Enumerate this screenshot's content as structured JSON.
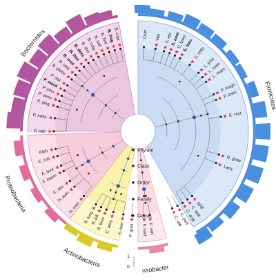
{
  "phyla": [
    {
      "key": "bacteroidetes",
      "name": "Bacteroides",
      "start": 270,
      "end": 350,
      "color": "#b2569f",
      "fill": "#f3d9ec",
      "inner": "#e4b6d6"
    },
    {
      "key": "firmicutes",
      "name": "Firmicutes",
      "start": 0,
      "end": 150,
      "color": "#4a8ee0",
      "fill": "#dbe8f8",
      "inner": "#b9d2f1"
    },
    {
      "key": "fusobacteria",
      "name": "Fusobacteria",
      "start": 165,
      "end": 180,
      "color": "#e58aa6",
      "fill": "#fce9ee",
      "inner": "#f7d3dd"
    },
    {
      "key": "actinobacteria",
      "name": "Actinobacteria",
      "start": 190,
      "end": 218,
      "color": "#dbc826",
      "fill": "#fdf8cc",
      "inner": "#f4ec94"
    },
    {
      "key": "proteobacteria",
      "name": "Proteobacteria",
      "start": 218,
      "end": 268,
      "color": "#e36b9b",
      "fill": "#fbe1ea",
      "inner": "#f3bccf"
    }
  ],
  "levels": [
    "Phylum",
    "Class",
    "Order",
    "Family",
    "Genus"
  ],
  "scale": {
    "min": "0",
    "max": "1"
  },
  "leaves": [
    {
      "label": "B. copr",
      "angle": 348,
      "bold": false,
      "star": true
    },
    {
      "label": "B. frag",
      "angle": 344,
      "bold": true,
      "star": true
    },
    {
      "label": "B. fine",
      "angle": 340,
      "bold": false,
      "star": true
    },
    {
      "label": "B. unif",
      "angle": 336,
      "bold": false,
      "star": true
    },
    {
      "label": "B. vulg",
      "angle": 332,
      "bold": false,
      "star": true
    },
    {
      "label": "B. ster",
      "angle": 328,
      "bold": false,
      "star": true
    },
    {
      "label": "B. dore",
      "angle": 324,
      "bold": true,
      "star": true
    },
    {
      "label": "B. thet",
      "angle": 320,
      "bold": true,
      "star": true
    },
    {
      "label": "B. ovat",
      "angle": 316,
      "bold": true,
      "star": true
    },
    {
      "label": "B. sele",
      "angle": 312,
      "bold": false,
      "star": true
    },
    {
      "label": "B. plebe",
      "angle": 308,
      "bold": false,
      "star": true
    },
    {
      "label": "P. dist",
      "angle": 303,
      "bold": false,
      "star": true
    },
    {
      "label": "P. merd",
      "angle": 299,
      "bold": true,
      "star": true
    },
    {
      "label": "P. john",
      "angle": 295,
      "bold": false,
      "star": true
    },
    {
      "label": "P. ueno",
      "angle": 291,
      "bold": false,
      "star": true
    },
    {
      "label": "P. ging",
      "angle": 287,
      "bold": false,
      "star": true
    },
    {
      "label": "P. mela",
      "angle": 279,
      "bold": false,
      "star": true
    },
    {
      "label": "P. inte",
      "angle": 270,
      "bold": false,
      "star": true
    },
    {
      "label": "Kleb",
      "angle": 258,
      "bold": false,
      "star": true
    },
    {
      "label": "E. coli",
      "angle": 253,
      "bold": false,
      "star": true
    },
    {
      "label": "A. lwof",
      "angle": 246,
      "bold": false,
      "star": true
    },
    {
      "label": "A. baum",
      "angle": 242,
      "bold": false,
      "star": true
    },
    {
      "label": "C. jeju",
      "angle": 234,
      "bold": false,
      "star": true
    },
    {
      "label": "H. pylo",
      "angle": 229,
      "bold": false,
      "star": true
    },
    {
      "label": "N. men",
      "angle": 220,
      "bold": false,
      "star": true
    },
    {
      "label": "B. long",
      "angle": 210,
      "bold": false,
      "star": true
    },
    {
      "label": "B. bifi",
      "angle": 206,
      "bold": false,
      "star": true
    },
    {
      "label": "B. brev",
      "angle": 202,
      "bold": false,
      "star": true
    },
    {
      "label": "C. aero",
      "angle": 197,
      "bold": false,
      "star": true
    },
    {
      "label": "E. lent",
      "angle": 190,
      "bold": false,
      "star": true
    },
    {
      "label": "P. gran",
      "angle": 184,
      "bold": false,
      "star": true
    },
    {
      "label": "F. nucl",
      "angle": 176,
      "bold": false,
      "star": true
    },
    {
      "label": "F. varl",
      "angle": 172,
      "bold": false,
      "star": true
    },
    {
      "label": "C. diff",
      "angle": 156,
      "bold": false,
      "star": true
    },
    {
      "label": "C. perf",
      "angle": 152,
      "bold": false,
      "star": true
    },
    {
      "label": "C. acid",
      "angle": 148,
      "bold": false,
      "star": true
    },
    {
      "label": "C. bolt",
      "angle": 144,
      "bold": false,
      "star": true
    },
    {
      "label": "SFB",
      "angle": 140,
      "bold": false,
      "star": true
    },
    {
      "label": "Lach",
      "angle": 112,
      "bold": false,
      "star": true
    },
    {
      "label": "R. gnav",
      "angle": 106,
      "bold": false,
      "star": true
    },
    {
      "label": "E. rect",
      "angle": 80,
      "bold": false,
      "star": true
    },
    {
      "label": "P. asac",
      "angle": 68,
      "bold": false,
      "star": true
    },
    {
      "label": "P. magn",
      "angle": 64,
      "bold": false,
      "star": true
    },
    {
      "label": "L. rham",
      "angle": 54,
      "bold": false,
      "star": true
    },
    {
      "label": "L. case",
      "angle": 50,
      "bold": false,
      "star": true
    },
    {
      "label": "L. john",
      "angle": 46,
      "bold": false,
      "star": true
    },
    {
      "label": "S. mitis",
      "angle": 38,
      "bold": false,
      "star": true
    },
    {
      "label": "E. faec",
      "angle": 30,
      "bold": true,
      "star": true
    },
    {
      "label": "E. faeci",
      "angle": 26,
      "bold": false,
      "star": true
    },
    {
      "label": "S. aure",
      "angle": 22,
      "bold": true,
      "star": true
    },
    {
      "label": "S. epi",
      "angle": 18,
      "bold": false,
      "star": true
    },
    {
      "label": "Veil",
      "angle": 12,
      "bold": false,
      "star": true
    },
    {
      "label": "Copr",
      "angle": 4,
      "bold": false,
      "star": false
    }
  ],
  "bars": [
    {
      "angle": 275,
      "value": 0.9
    },
    {
      "angle": 282,
      "value": 0.7
    },
    {
      "angle": 290,
      "value": 0.8
    },
    {
      "angle": 298,
      "value": 1.0
    },
    {
      "angle": 306,
      "value": 0.75
    },
    {
      "angle": 314,
      "value": 0.9
    },
    {
      "angle": 322,
      "value": 0.6
    },
    {
      "angle": 330,
      "value": 0.85
    },
    {
      "angle": 338,
      "value": 0.5
    },
    {
      "angle": 344,
      "value": 0.4
    },
    {
      "angle": 2,
      "value": 0.55
    },
    {
      "angle": 9,
      "value": 0.35
    },
    {
      "angle": 18,
      "value": 0.4
    },
    {
      "angle": 26,
      "value": 0.6
    },
    {
      "angle": 34,
      "value": 0.5
    },
    {
      "angle": 42,
      "value": 0.45
    },
    {
      "angle": 52,
      "value": 0.35
    },
    {
      "angle": 60,
      "value": 0.3
    },
    {
      "angle": 70,
      "value": 0.55
    },
    {
      "angle": 80,
      "value": 0.8
    },
    {
      "angle": 90,
      "value": 0.95
    },
    {
      "angle": 100,
      "value": 0.9
    },
    {
      "angle": 110,
      "value": 0.85
    },
    {
      "angle": 120,
      "value": 0.75
    },
    {
      "angle": 130,
      "value": 0.6
    },
    {
      "angle": 140,
      "value": 0.45
    },
    {
      "angle": 148,
      "value": 0.7
    },
    {
      "angle": 171,
      "value": 0.3
    },
    {
      "angle": 196,
      "value": 0.35
    },
    {
      "angle": 206,
      "value": 0.45
    },
    {
      "angle": 214,
      "value": 0.25
    },
    {
      "angle": 226,
      "value": 0.35
    },
    {
      "angle": 238,
      "value": 0.3
    },
    {
      "angle": 250,
      "value": 0.4
    },
    {
      "angle": 262,
      "value": 0.45
    }
  ]
}
